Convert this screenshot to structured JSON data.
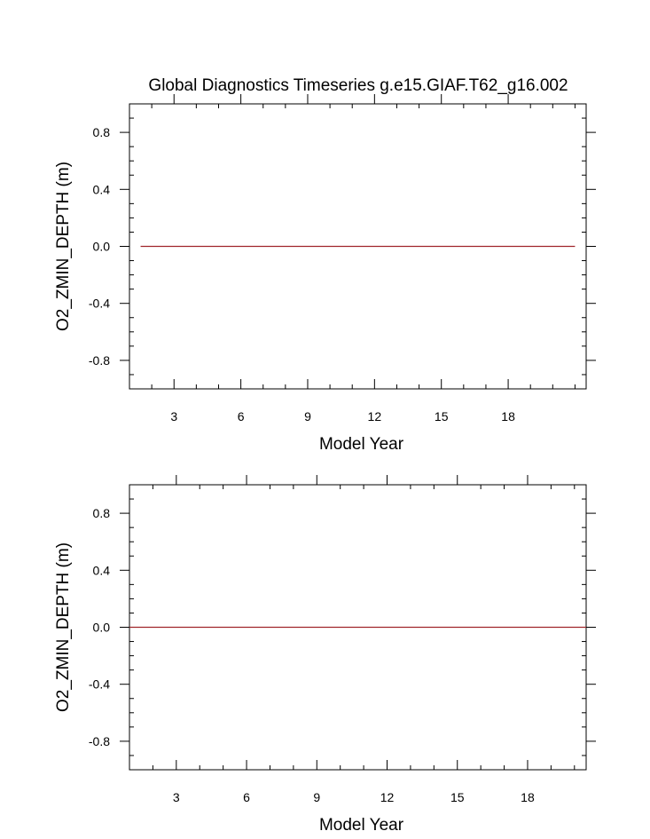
{
  "chart_data": [
    {
      "type": "line",
      "title": "Global Diagnostics Timeseries g.e15.GIAF.T62_g16.002",
      "xlabel": "Model Year",
      "ylabel": "O2_ZMIN_DEPTH (m)",
      "xlim": [
        1.0,
        21.5
      ],
      "ylim": [
        -1.0,
        1.0
      ],
      "x_ticks": [
        "3",
        "6",
        "9",
        "12",
        "15",
        "18"
      ],
      "x_tick_values": [
        3,
        6,
        9,
        12,
        15,
        18
      ],
      "y_ticks": [
        "0.8",
        "0.4",
        "0.0",
        "-0.4",
        "-0.8"
      ],
      "y_tick_values": [
        0.8,
        0.4,
        0.0,
        -0.4,
        -0.8
      ],
      "grid": false,
      "series": [
        {
          "x": [
            1.5,
            21.0
          ],
          "y": [
            0.0,
            0.0
          ],
          "color": "#a0252a"
        }
      ]
    },
    {
      "type": "line",
      "title": "",
      "xlabel": "Model Year",
      "ylabel": "O2_ZMIN_DEPTH (m)",
      "xlim": [
        1.0,
        20.5
      ],
      "ylim": [
        -1.0,
        1.0
      ],
      "x_ticks": [
        "3",
        "6",
        "9",
        "12",
        "15",
        "18"
      ],
      "x_tick_values": [
        3,
        6,
        9,
        12,
        15,
        18
      ],
      "y_ticks": [
        "0.8",
        "0.4",
        "0.0",
        "-0.4",
        "-0.8"
      ],
      "y_tick_values": [
        0.8,
        0.4,
        0.0,
        -0.4,
        -0.8
      ],
      "grid": false,
      "series": [
        {
          "x": [
            1.0,
            20.5
          ],
          "y": [
            0.0,
            0.0
          ],
          "color": "#a0252a"
        }
      ]
    }
  ]
}
